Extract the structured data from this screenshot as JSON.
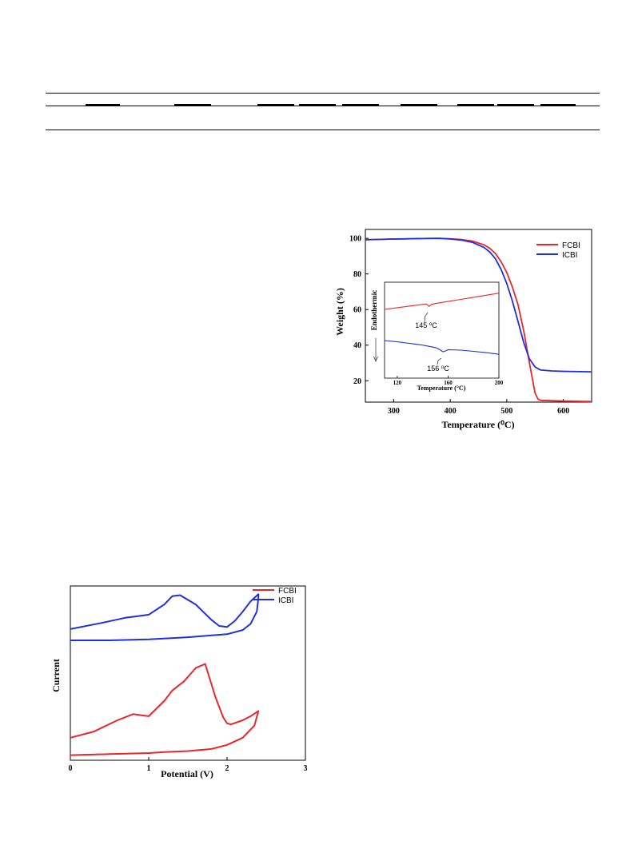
{
  "chart_data": [
    {
      "type": "line",
      "xlabel": "Temperature (⁰C)",
      "ylabel": "Weight (%)",
      "xlim": [
        250,
        650
      ],
      "ylim": [
        8,
        105
      ],
      "x_ticks": [
        "300",
        "400",
        "500",
        "600"
      ],
      "y_ticks": [
        "20",
        "40",
        "60",
        "80",
        "100"
      ],
      "legend_position": "top-right",
      "series": [
        {
          "name": "FCBI",
          "color": "#e8262b",
          "x": [
            250,
            300,
            350,
            380,
            400,
            420,
            440,
            460,
            470,
            480,
            490,
            500,
            510,
            520,
            530,
            540,
            550,
            555,
            560,
            600,
            650
          ],
          "y": [
            99.2,
            99.6,
            99.9,
            100,
            99.8,
            99.3,
            98.4,
            96.3,
            94.4,
            91.5,
            86.8,
            80.8,
            72.5,
            62.6,
            48.0,
            30.0,
            13.0,
            9.8,
            9.0,
            8.6,
            8.3
          ]
        },
        {
          "name": "ICBI",
          "color": "#1f2fe0",
          "x": [
            250,
            300,
            350,
            380,
            400,
            420,
            440,
            460,
            470,
            480,
            490,
            500,
            510,
            520,
            530,
            540,
            550,
            560,
            580,
            600,
            650
          ],
          "y": [
            99.2,
            99.6,
            99.9,
            100,
            99.6,
            99.0,
            97.7,
            94.8,
            92.3,
            88.5,
            82.5,
            74.6,
            64.6,
            53.2,
            41.4,
            32.3,
            27.7,
            26.0,
            25.5,
            25.3,
            25.0
          ]
        }
      ],
      "inset": {
        "xlabel": "Temperature (°C)",
        "ylabel": "Endothermic",
        "xlim": [
          110,
          200
        ],
        "x_ticks": [
          "120",
          "160",
          "200"
        ],
        "annotations": [
          "145 ⁰C",
          "156 ⁰C"
        ],
        "series": [
          {
            "name": "FCBI",
            "color": "#e8262b",
            "x": [
              110,
              120,
              130,
              140,
              143,
              145,
              147,
              150,
              160,
              170,
              180,
              190,
              200
            ],
            "y": [
              0.5,
              0.54,
              0.58,
              0.62,
              0.63,
              0.57,
              0.62,
              0.64,
              0.69,
              0.74,
              0.79,
              0.84,
              0.89
            ]
          },
          {
            "name": "ICBI",
            "color": "#1f2fe0",
            "x": [
              110,
              120,
              130,
              140,
              150,
              153,
              156,
              158,
              160,
              170,
              180,
              190,
              200
            ],
            "y": [
              -0.25,
              -0.28,
              -0.32,
              -0.36,
              -0.42,
              -0.46,
              -0.52,
              -0.5,
              -0.47,
              -0.48,
              -0.51,
              -0.54,
              -0.58
            ]
          }
        ]
      }
    },
    {
      "type": "line",
      "xlabel": "Potential (V)",
      "ylabel": "Current",
      "xlim": [
        0,
        3
      ],
      "x_ticks": [
        "0",
        "1",
        "2",
        "3"
      ],
      "legend_position": "top-right",
      "series": [
        {
          "name": "FCBI",
          "color": "#e8262b",
          "x": [
            0,
            0.5,
            1.0,
            1.2,
            1.5,
            1.8,
            2.0,
            2.2,
            2.35,
            2.4,
            2.4,
            2.3,
            2.2,
            2.05,
            2.0,
            1.95,
            1.85,
            1.72,
            1.6,
            1.45,
            1.3,
            1.2,
            1.0,
            0.9,
            0.8,
            0.6,
            0.3,
            0
          ],
          "y": [
            0.05,
            0.06,
            0.07,
            0.08,
            0.09,
            0.11,
            0.15,
            0.22,
            0.34,
            0.48,
            0.48,
            0.43,
            0.39,
            0.35,
            0.36,
            0.42,
            0.62,
            0.94,
            0.9,
            0.77,
            0.68,
            0.58,
            0.43,
            0.44,
            0.45,
            0.39,
            0.28,
            0.22
          ]
        },
        {
          "name": "ICBI",
          "color": "#1f2fe0",
          "x": [
            0,
            0.5,
            1.0,
            1.5,
            2.0,
            2.2,
            2.3,
            2.38,
            2.4,
            2.4,
            2.3,
            2.2,
            2.1,
            2.0,
            1.9,
            1.8,
            1.6,
            1.4,
            1.3,
            1.2,
            1.0,
            0.9,
            0.7,
            0.4,
            0
          ],
          "y": [
            1.17,
            1.17,
            1.18,
            1.2,
            1.23,
            1.27,
            1.33,
            1.45,
            1.58,
            1.62,
            1.55,
            1.45,
            1.36,
            1.3,
            1.31,
            1.37,
            1.52,
            1.61,
            1.6,
            1.52,
            1.42,
            1.41,
            1.39,
            1.34,
            1.28
          ]
        }
      ]
    }
  ]
}
